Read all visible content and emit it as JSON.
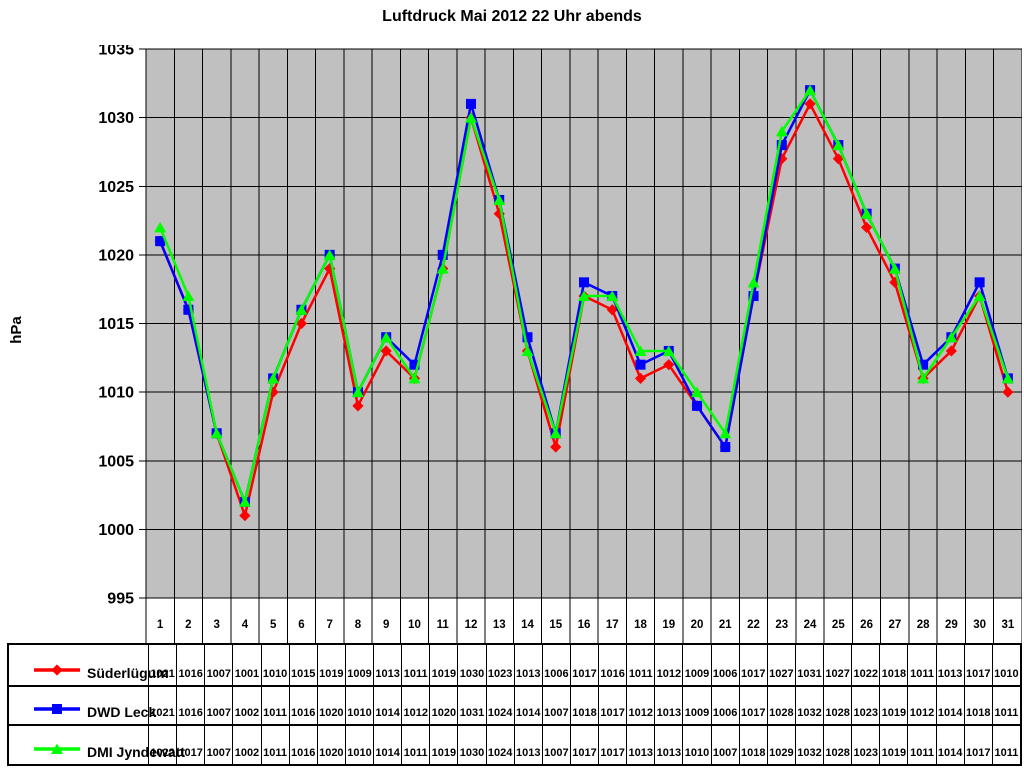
{
  "chart_data": {
    "type": "line",
    "title": "Luftdruck Mai 2012 22 Uhr abends",
    "xlabel": "",
    "ylabel": "hPa",
    "ylim": [
      995,
      1035
    ],
    "ytick_step": 5,
    "yticks": [
      995,
      1000,
      1005,
      1010,
      1015,
      1020,
      1025,
      1030,
      1035
    ],
    "grid": true,
    "legend_position": "data-table-left",
    "categories": [
      1,
      2,
      3,
      4,
      5,
      6,
      7,
      8,
      9,
      10,
      11,
      12,
      13,
      14,
      15,
      16,
      17,
      18,
      19,
      20,
      21,
      22,
      23,
      24,
      25,
      26,
      27,
      28,
      29,
      30,
      31
    ],
    "series": [
      {
        "name": "Süderlügum",
        "color": "#ff0000",
        "marker": "diamond",
        "values": [
          1021,
          1016,
          1007,
          1001,
          1010,
          1015,
          1019,
          1009,
          1013,
          1011,
          1019,
          1030,
          1023,
          1013,
          1006,
          1017,
          1016,
          1011,
          1012,
          1009,
          1006,
          1017,
          1027,
          1031,
          1027,
          1022,
          1018,
          1011,
          1013,
          1017,
          1010
        ]
      },
      {
        "name": "DWD Leck",
        "color": "#0000ff",
        "marker": "square",
        "values": [
          1021,
          1016,
          1007,
          1002,
          1011,
          1016,
          1020,
          1010,
          1014,
          1012,
          1020,
          1031,
          1024,
          1014,
          1007,
          1018,
          1017,
          1012,
          1013,
          1009,
          1006,
          1017,
          1028,
          1032,
          1028,
          1023,
          1019,
          1012,
          1014,
          1018,
          1011
        ]
      },
      {
        "name": "DMI Jyndewatt",
        "color": "#00ff00",
        "marker": "triangle",
        "values": [
          1022,
          1017,
          1007,
          1002,
          1011,
          1016,
          1020,
          1010,
          1014,
          1011,
          1019,
          1030,
          1024,
          1013,
          1007,
          1017,
          1017,
          1013,
          1013,
          1010,
          1007,
          1018,
          1029,
          1032,
          1028,
          1023,
          1019,
          1011,
          1014,
          1017,
          1011
        ]
      }
    ]
  },
  "colors": {
    "plot_bg": "#c0c0c0",
    "grid": "#000000",
    "axis": "#000000",
    "table_border": "#000000",
    "text": "#000000"
  }
}
